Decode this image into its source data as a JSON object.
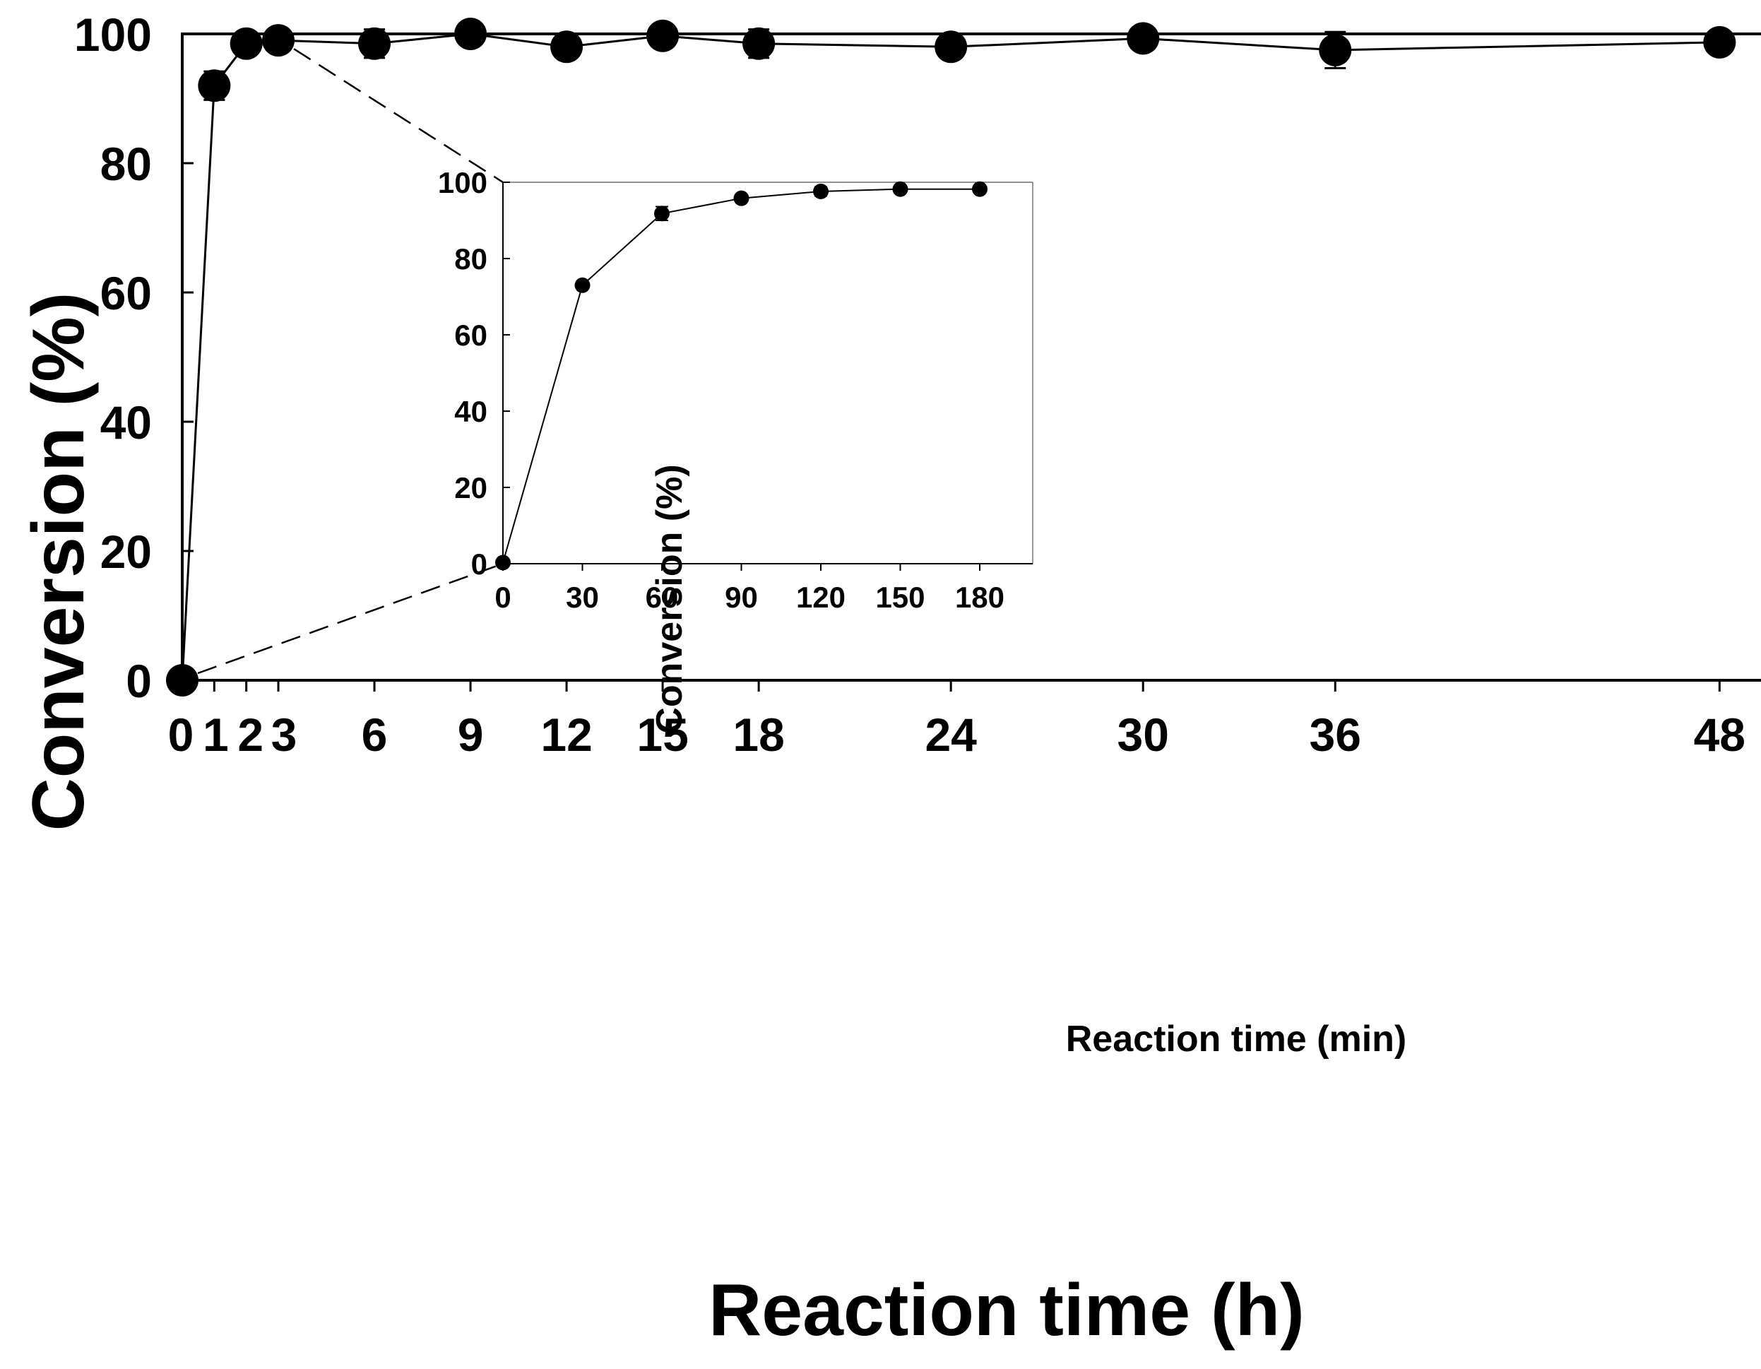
{
  "chart_data": [
    {
      "id": "main",
      "type": "line",
      "title": "",
      "xlabel": "Reaction time (h)",
      "ylabel": "Conversion (%)",
      "x": [
        0,
        1,
        2,
        3,
        6,
        9,
        12,
        15,
        18,
        24,
        30,
        36,
        48
      ],
      "xticks": [
        0,
        1,
        2,
        3,
        6,
        9,
        12,
        15,
        18,
        24,
        30,
        36,
        48
      ],
      "xlim": [
        0,
        50
      ],
      "ylim": [
        0,
        100
      ],
      "yticks": [
        0,
        20,
        40,
        60,
        80,
        100
      ],
      "series": [
        {
          "name": "Conversion",
          "values": [
            0,
            92,
            98.5,
            99,
            98.5,
            100,
            98,
            99.7,
            98.5,
            98,
            99.3,
            97.5,
            98.7
          ],
          "errors": [
            0,
            2.2,
            1.5,
            1.2,
            2.2,
            0.5,
            0.8,
            0.6,
            2.2,
            0.6,
            0.8,
            2.8,
            1.0
          ]
        }
      ],
      "grid": false,
      "legend": "none"
    },
    {
      "id": "inset",
      "type": "line",
      "title": "",
      "xlabel": "Reaction time (min)",
      "ylabel": "Conversion (%)",
      "x": [
        0,
        30,
        60,
        90,
        120,
        150,
        180
      ],
      "xticks": [
        0,
        30,
        60,
        90,
        120,
        150,
        180
      ],
      "xlim": [
        0,
        200
      ],
      "ylim": [
        0,
        100
      ],
      "yticks": [
        0,
        20,
        40,
        60,
        80,
        100
      ],
      "series": [
        {
          "name": "Conversion",
          "values": [
            0.3,
            73,
            91.8,
            95.8,
            97.6,
            98.2,
            98.2
          ],
          "errors": [
            0,
            0,
            1.8,
            0,
            1.2,
            0.8,
            0.8
          ]
        }
      ],
      "grid": false,
      "legend": "none"
    }
  ]
}
